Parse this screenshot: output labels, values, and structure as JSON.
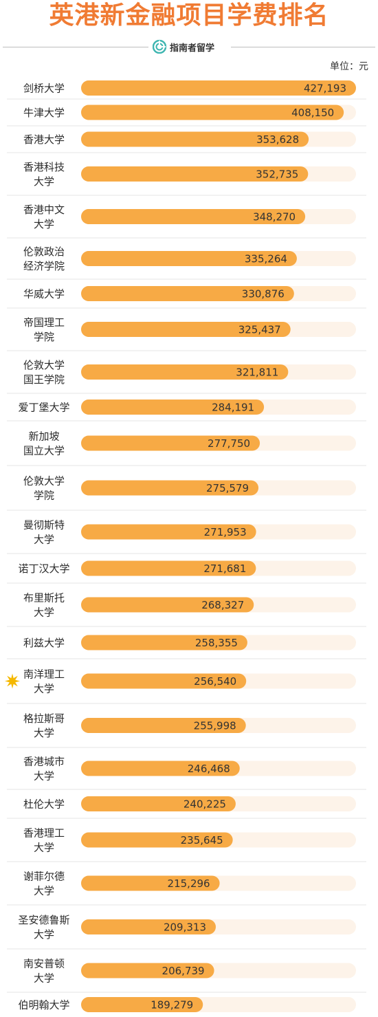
{
  "title": "英港新金融项目学费排名",
  "brand": {
    "name": "指南者留学",
    "logo_icon": "guide-logo-icon"
  },
  "unit_label": "单位：元",
  "colors": {
    "title": "#F07B33",
    "bar_fill": "#F7AA45",
    "bar_track": "#FDF3E9",
    "separator": "#e5e5e5",
    "star": "#F5B800"
  },
  "chart_data": {
    "type": "bar",
    "orientation": "horizontal",
    "title": "英港新金融项目学费排名",
    "unit": "元",
    "xlim": [
      0,
      427193
    ],
    "highlighted_category": "南洋理工大学",
    "categories": [
      "剑桥大学",
      "牛津大学",
      "香港大学",
      "香港科技大学",
      "香港中文大学",
      "伦敦政治经济学院",
      "华威大学",
      "帝国理工学院",
      "伦敦大学国王学院",
      "爱丁堡大学",
      "新加坡国立大学",
      "伦敦大学学院",
      "曼彻斯特大学",
      "诺丁汉大学",
      "布里斯托大学",
      "利兹大学",
      "南洋理工大学",
      "格拉斯哥大学",
      "香港城市大学",
      "杜伦大学",
      "香港理工大学",
      "谢菲尔德大学",
      "圣安德鲁斯大学",
      "南安普顿大学",
      "伯明翰大学"
    ],
    "category_lines": [
      [
        "剑桥大学"
      ],
      [
        "牛津大学"
      ],
      [
        "香港大学"
      ],
      [
        "香港科技",
        "大学"
      ],
      [
        "香港中文",
        "大学"
      ],
      [
        "伦敦政治",
        "经济学院"
      ],
      [
        "华威大学"
      ],
      [
        "帝国理工",
        "学院"
      ],
      [
        "伦敦大学",
        "国王学院"
      ],
      [
        "爱丁堡大学"
      ],
      [
        "新加坡",
        "国立大学"
      ],
      [
        "伦敦大学",
        "学院"
      ],
      [
        "曼彻斯特",
        "大学"
      ],
      [
        "诺丁汉大学"
      ],
      [
        "布里斯托",
        "大学"
      ],
      [
        "利兹大学"
      ],
      [
        "南洋理工",
        "大学"
      ],
      [
        "格拉斯哥",
        "大学"
      ],
      [
        "香港城市",
        "大学"
      ],
      [
        "杜伦大学"
      ],
      [
        "香港理工",
        "大学"
      ],
      [
        "谢菲尔德",
        "大学"
      ],
      [
        "圣安德鲁斯",
        "大学"
      ],
      [
        "南安普顿",
        "大学"
      ],
      [
        "伯明翰大学"
      ]
    ],
    "values": [
      427193,
      408150,
      353628,
      352735,
      348270,
      335264,
      330876,
      325437,
      321811,
      284191,
      277750,
      275579,
      271953,
      271681,
      268327,
      258355,
      256540,
      255998,
      246468,
      240225,
      235645,
      215296,
      209313,
      206739,
      189279
    ],
    "value_labels": [
      "427,193",
      "408,150",
      "353,628",
      "352,735",
      "348,270",
      "335,264",
      "330,876",
      "325,437",
      "321,811",
      "284,191",
      "277,750",
      "275,579",
      "271,953",
      "271,681",
      "268,327",
      "258,355",
      "256,540",
      "255,998",
      "246,468",
      "240,225",
      "235,645",
      "215,296",
      "209,313",
      "206,739",
      "189,279"
    ]
  }
}
